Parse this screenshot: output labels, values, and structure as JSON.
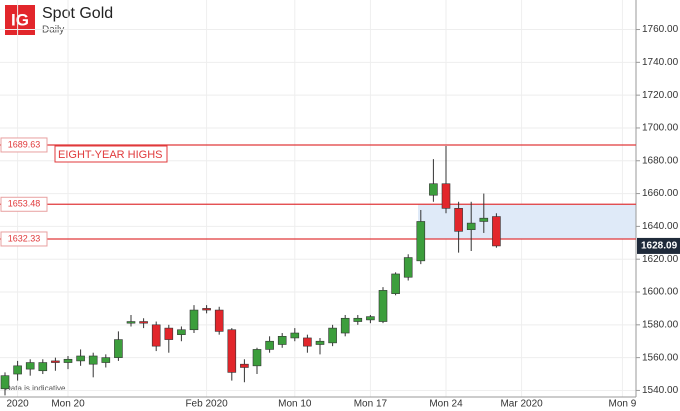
{
  "chart_data": {
    "type": "candlestick",
    "title": "Spot Gold",
    "subtitle": "Daily",
    "logo": "IG",
    "note": "Data is indicative",
    "annotation": "EIGHT-YEAR HIGHS",
    "categories": [
      null,
      "2020",
      null,
      null,
      null,
      "Mon 20",
      null,
      null,
      null,
      null,
      null,
      null,
      null,
      null,
      null,
      null,
      "Feb 2020",
      null,
      null,
      null,
      null,
      null,
      null,
      "Mon 10",
      null,
      null,
      null,
      null,
      null,
      "Mon 17",
      null,
      null,
      null,
      null,
      null,
      "Mon 24",
      null,
      null,
      null,
      null,
      null,
      "Mar 2020",
      null,
      null,
      null,
      null,
      null,
      null,
      null,
      "Mon 9"
    ],
    "open": [
      1541,
      1550,
      1553,
      1552,
      1558,
      1557,
      1558,
      1556,
      1557,
      1560,
      1581,
      1582,
      1580,
      1578,
      1574,
      1577,
      1590,
      1589,
      1577,
      1556,
      1555,
      1565,
      1568,
      1572,
      1572,
      1568,
      1569,
      1575,
      1582,
      1583,
      1582,
      1599,
      1609,
      1619,
      1659,
      1666,
      1651,
      1638,
      1643,
      1646,
      null,
      null,
      null,
      null,
      null,
      null,
      null,
      null,
      null,
      null
    ],
    "high": [
      1551,
      1558,
      1559,
      1559,
      1560,
      1561,
      1565,
      1563,
      1562,
      1576,
      1586,
      1584,
      1582,
      1580,
      1579,
      1592,
      1592,
      1591,
      1578,
      1559,
      1566,
      1573,
      1575,
      1578,
      1574,
      1572,
      1580,
      1586,
      1586,
      1586,
      1603,
      1612,
      1623,
      1650,
      1681,
      1689,
      1655,
      1655,
      1660,
      1648,
      null,
      null,
      null,
      null,
      null,
      null,
      null,
      null,
      null,
      null
    ],
    "low": [
      1537,
      1546,
      1549,
      1550,
      1552,
      1553,
      1555,
      1548,
      1554,
      1558,
      1579,
      1578,
      1564,
      1563,
      1570,
      1575,
      1587,
      1574,
      1546,
      1545,
      1550,
      1563,
      1566,
      1570,
      1563,
      1562,
      1567,
      1573,
      1580,
      1581,
      1581,
      1598,
      1607,
      1617,
      1655,
      1648,
      1624,
      1625,
      1636,
      1627,
      null,
      null,
      null,
      null,
      null,
      null,
      null,
      null,
      null,
      null
    ],
    "close": [
      1549,
      1555,
      1557,
      1557,
      1557,
      1559,
      1561,
      1561,
      1560,
      1571,
      1582,
      1581,
      1567,
      1571,
      1577,
      1589,
      1589,
      1576,
      1551,
      1554,
      1565,
      1570,
      1573,
      1575,
      1567,
      1570,
      1578,
      1584,
      1584,
      1585,
      1601,
      1611,
      1621,
      1643,
      1666,
      1651,
      1637,
      1642,
      1645,
      1628.09,
      null,
      null,
      null,
      null,
      null,
      null,
      null,
      null,
      null,
      null
    ],
    "up_color": "#3c9e3c",
    "down_color": "#e2262b",
    "level_color": "#e0393b",
    "zone_color": "#dfeaf8",
    "levels": [
      1689.63,
      1653.48,
      1632.33
    ],
    "ylim": [
      1536,
      1778
    ],
    "yticks": [
      {
        "value": 1540,
        "label": "1540.00"
      },
      {
        "value": 1560,
        "label": "1560.00"
      },
      {
        "value": 1580,
        "label": "1580.00"
      },
      {
        "value": 1600,
        "label": "1600.00"
      },
      {
        "value": 1620,
        "label": "1620.00"
      },
      {
        "value": 1640,
        "label": "1640.00"
      },
      {
        "value": 1660,
        "label": "1660.00"
      },
      {
        "value": 1680,
        "label": "1680.00"
      },
      {
        "value": 1700,
        "label": "1700.00"
      },
      {
        "value": 1720,
        "label": "1720.00"
      },
      {
        "value": 1740,
        "label": "1740.00"
      },
      {
        "value": 1760,
        "label": "1760.00"
      }
    ],
    "grid": true
  }
}
